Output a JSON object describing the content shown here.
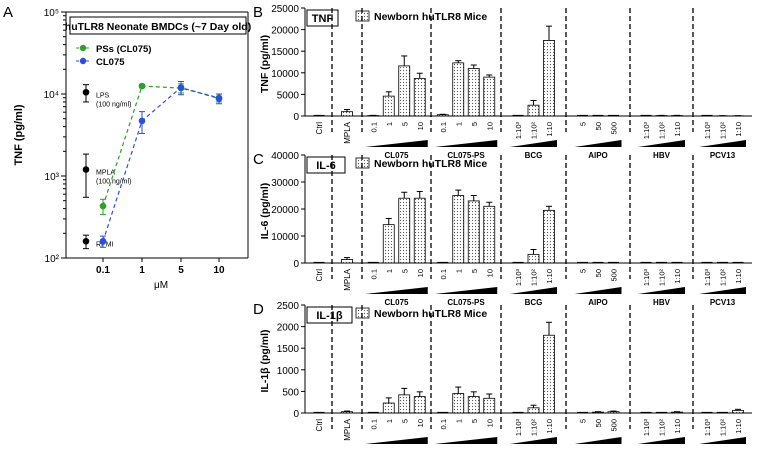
{
  "chart_data": [
    {
      "panel_letter": "A",
      "type": "line",
      "title": "huTLR8 Neonate BMDCs (~7 Day old)",
      "ylabel": "TNF (pg/ml)",
      "xlabel": "μM",
      "yscale": "log",
      "ylim": [
        100,
        100000
      ],
      "ytick_labels": [
        {
          "v": 100,
          "t": "10²"
        },
        {
          "v": 1000,
          "t": "10³"
        },
        {
          "v": 10000,
          "t": "10⁴"
        },
        {
          "v": 100000,
          "t": "10⁵"
        }
      ],
      "categories": [
        "0.1",
        "1",
        "5",
        "10"
      ],
      "series": [
        {
          "name": "PSs (CL075)",
          "color": "#2e9e2e",
          "values": [
            430,
            12500,
            11800,
            9000
          ],
          "errors": [
            90,
            600,
            1500,
            1000
          ]
        },
        {
          "name": "CL075",
          "color": "#2a4fd8",
          "values": [
            160,
            4700,
            12000,
            8800
          ],
          "errors": [
            25,
            1400,
            2200,
            1200
          ]
        }
      ],
      "controls": [
        {
          "name": "LPS",
          "note": "(100 ng/ml)",
          "value": 10500,
          "error": 2500
        },
        {
          "name": "MPLA",
          "note": "(100 ng/ml)",
          "value": 1200,
          "error": 650
        },
        {
          "name": "RPMI",
          "note": "",
          "value": 160,
          "error": 30
        }
      ]
    },
    {
      "panel_letter": "B",
      "type": "bar",
      "tag": "TNF",
      "legend": "Newborn huTLR8 Mice",
      "ylabel": "TNF (pg/ml)",
      "ylim": [
        0,
        25000
      ],
      "yticks": [
        "0",
        "5000",
        "10000",
        "15000",
        "20000",
        "25000"
      ],
      "groups": [
        {
          "label": "Ctrl",
          "categories": [
            ""
          ],
          "values": [
            0
          ],
          "errors": [
            0
          ]
        },
        {
          "label": "MPLA",
          "categories": [
            ""
          ],
          "values": [
            1000
          ],
          "errors": [
            500
          ]
        },
        {
          "label": "CL075",
          "categories": [
            "0.1",
            "1",
            "5",
            "10"
          ],
          "values": [
            100,
            4600,
            11600,
            8700
          ],
          "errors": [
            50,
            1000,
            2300,
            1200
          ]
        },
        {
          "label": "CL075-PS",
          "categories": [
            "0.1",
            "1",
            "5",
            "10"
          ],
          "values": [
            300,
            12300,
            11000,
            9000
          ],
          "errors": [
            100,
            500,
            800,
            500
          ]
        },
        {
          "label": "BCG",
          "categories": [
            "1:10³",
            "1:10²",
            "1:10"
          ],
          "values": [
            0,
            2500,
            17500
          ],
          "errors": [
            0,
            1100,
            3300
          ]
        },
        {
          "label": "AlPO",
          "categories": [
            "5",
            "50",
            "500"
          ],
          "values": [
            0,
            0,
            0
          ],
          "errors": [
            0,
            0,
            0
          ]
        },
        {
          "label": "HBV",
          "categories": [
            "1:10³",
            "1:10²",
            "1:10"
          ],
          "values": [
            0,
            100,
            100
          ],
          "errors": [
            0,
            50,
            50
          ]
        },
        {
          "label": "PCV13",
          "categories": [
            "1:10³",
            "1:10²",
            "1:10"
          ],
          "values": [
            0,
            50,
            50
          ],
          "errors": [
            0,
            30,
            30
          ]
        }
      ]
    },
    {
      "panel_letter": "C",
      "type": "bar",
      "tag": "IL-6",
      "legend": "Newborn huTLR8 Mice",
      "ylabel": "IL-6 (pg/ml)",
      "ylim": [
        0,
        40000
      ],
      "yticks": [
        "0",
        "10000",
        "20000",
        "30000",
        "40000"
      ],
      "groups": [
        {
          "label": "Ctrl",
          "categories": [
            ""
          ],
          "values": [
            0
          ],
          "errors": [
            0
          ]
        },
        {
          "label": "MPLA",
          "categories": [
            ""
          ],
          "values": [
            1300
          ],
          "errors": [
            700
          ]
        },
        {
          "label": "CL075",
          "categories": [
            "0.1",
            "1",
            "5",
            "10"
          ],
          "values": [
            0,
            14200,
            24000,
            24000
          ],
          "errors": [
            0,
            2300,
            2200,
            2500
          ]
        },
        {
          "label": "CL075-PS",
          "categories": [
            "0.1",
            "1",
            "5",
            "10"
          ],
          "values": [
            0,
            25000,
            23000,
            21000
          ],
          "errors": [
            0,
            2000,
            2000,
            1500
          ]
        },
        {
          "label": "BCG",
          "categories": [
            "1:10³",
            "1:10²",
            "1:10"
          ],
          "values": [
            0,
            3200,
            19500
          ],
          "errors": [
            0,
            1800,
            1500
          ]
        },
        {
          "label": "AlPO",
          "categories": [
            "5",
            "50",
            "500"
          ],
          "values": [
            0,
            0,
            0
          ],
          "errors": [
            0,
            0,
            0
          ]
        },
        {
          "label": "HBV",
          "categories": [
            "1:10³",
            "1:10²",
            "1:10"
          ],
          "values": [
            0,
            0,
            0
          ],
          "errors": [
            0,
            0,
            0
          ]
        },
        {
          "label": "PCV13",
          "categories": [
            "1:10³",
            "1:10²",
            "1:10"
          ],
          "values": [
            0,
            0,
            0
          ],
          "errors": [
            0,
            0,
            0
          ]
        }
      ]
    },
    {
      "panel_letter": "D",
      "type": "bar",
      "tag": "IL-1β",
      "legend": "Newborn huTLR8 Mice",
      "ylabel": "IL-1β (pg/ml)",
      "ylim": [
        0,
        2500
      ],
      "yticks": [
        "0",
        "500",
        "1000",
        "1500",
        "2000",
        "2500"
      ],
      "groups": [
        {
          "label": "Ctrl",
          "categories": [
            ""
          ],
          "values": [
            0
          ],
          "errors": [
            0
          ]
        },
        {
          "label": "MPLA",
          "categories": [
            ""
          ],
          "values": [
            30
          ],
          "errors": [
            15
          ]
        },
        {
          "label": "CL075",
          "categories": [
            "0.1",
            "1",
            "5",
            "10"
          ],
          "values": [
            0,
            230,
            420,
            380
          ],
          "errors": [
            0,
            120,
            150,
            110
          ]
        },
        {
          "label": "CL075-PS",
          "categories": [
            "0.1",
            "1",
            "5",
            "10"
          ],
          "values": [
            0,
            450,
            380,
            340
          ],
          "errors": [
            0,
            150,
            110,
            100
          ]
        },
        {
          "label": "BCG",
          "categories": [
            "1:10³",
            "1:10²",
            "1:10"
          ],
          "values": [
            0,
            120,
            1800
          ],
          "errors": [
            0,
            60,
            300
          ]
        },
        {
          "label": "AlPO",
          "categories": [
            "5",
            "50",
            "500"
          ],
          "values": [
            0,
            20,
            30
          ],
          "errors": [
            0,
            10,
            15
          ]
        },
        {
          "label": "HBV",
          "categories": [
            "1:10³",
            "1:10²",
            "1:10"
          ],
          "values": [
            0,
            0,
            20
          ],
          "errors": [
            0,
            0,
            10
          ]
        },
        {
          "label": "PCV13",
          "categories": [
            "1:10³",
            "1:10²",
            "1:10"
          ],
          "values": [
            0,
            0,
            60
          ],
          "errors": [
            0,
            0,
            25
          ]
        }
      ]
    }
  ]
}
